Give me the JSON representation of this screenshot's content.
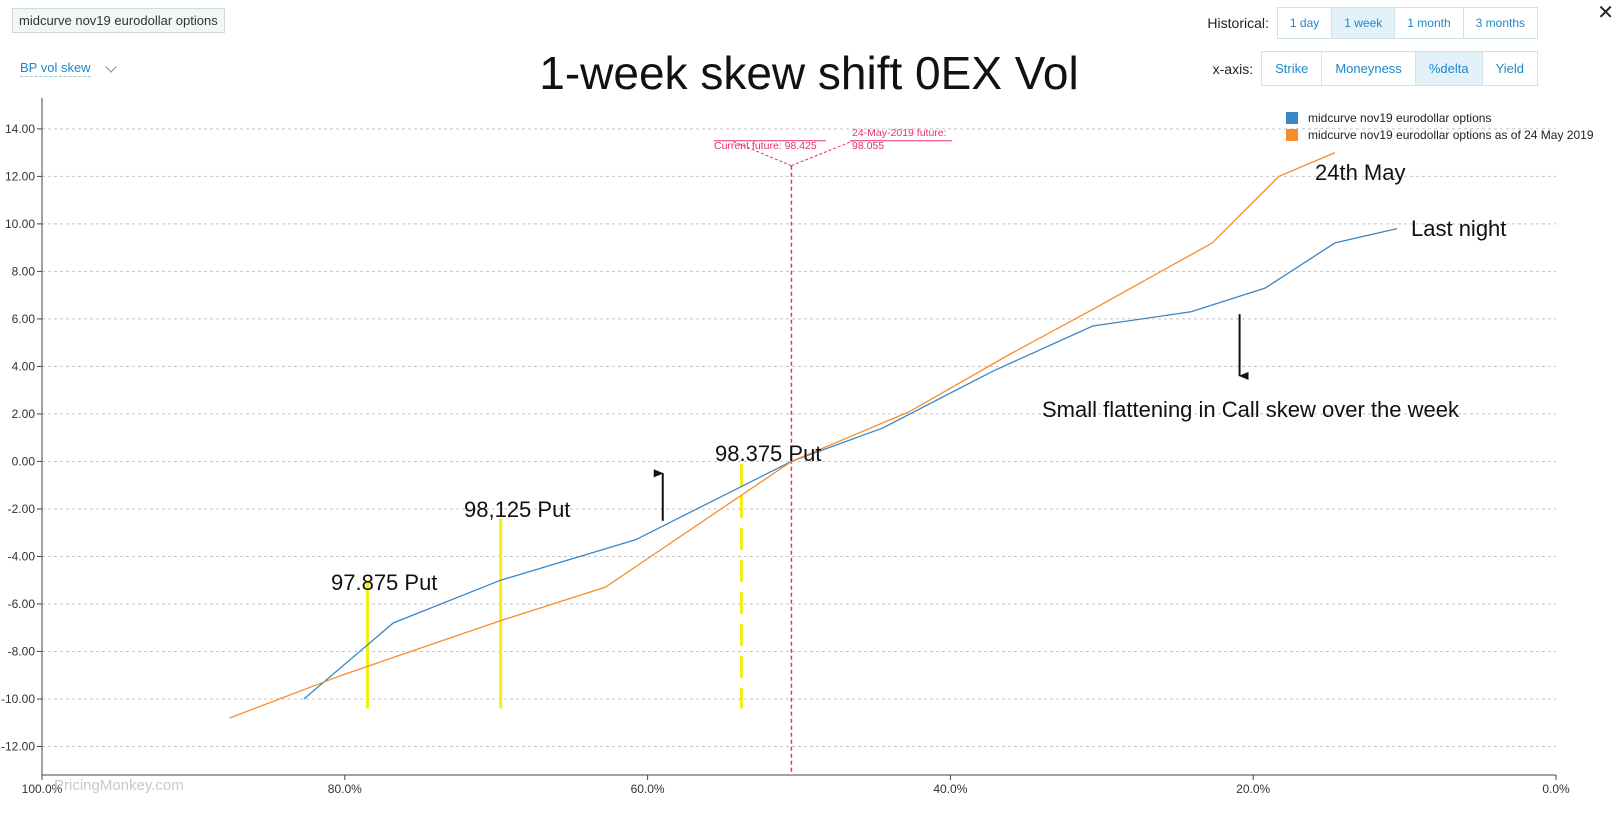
{
  "product_tag": "midcurve nov19 eurodollar options",
  "view_select": {
    "value": "BP vol skew"
  },
  "title": "1-week skew shift 0EX Vol",
  "historical": {
    "label": "Historical:",
    "options": [
      "1 day",
      "1 week",
      "1 month",
      "3 months"
    ],
    "active": "1 week"
  },
  "xaxis_mode": {
    "label": "x-axis:",
    "options": [
      "Strike",
      "Moneyness",
      "%delta",
      "Yield"
    ],
    "active": "%delta"
  },
  "close_symbol": "✕",
  "watermark": "PricingMonkey.com",
  "colors": {
    "series_current": "#3a87c6",
    "series_hist": "#f78c2a",
    "marker_line": "#e8306e",
    "put_markers": "#f2ee1a"
  },
  "chart_data": {
    "type": "line",
    "xlabel": "",
    "ylabel": "",
    "xlim": [
      100,
      0
    ],
    "ylim": [
      -13.2,
      15.3
    ],
    "x_ticks": [
      "100.0%",
      "80.0%",
      "60.0%",
      "40.0%",
      "20.0%",
      "0.0%"
    ],
    "y_ticks": [
      "14.00",
      "12.00",
      "10.00",
      "8.00",
      "6.00",
      "4.00",
      "2.00",
      "0.00",
      "-2.00",
      "-4.00",
      "-6.00",
      "-8.00",
      "-10.00",
      "-12.00"
    ],
    "grid": true,
    "legend": "top-right",
    "series": [
      {
        "name": "midcurve nov19 eurodollar options",
        "color": "#3a87c6",
        "points": [
          [
            82.7,
            -10.0
          ],
          [
            76.8,
            -6.8
          ],
          [
            69.7,
            -5.0
          ],
          [
            60.8,
            -3.3
          ],
          [
            50.5,
            0.0
          ],
          [
            44.5,
            1.4
          ],
          [
            37.2,
            3.8
          ],
          [
            30.6,
            5.7
          ],
          [
            24.1,
            6.3
          ],
          [
            19.2,
            7.3
          ],
          [
            14.6,
            9.2
          ],
          [
            10.5,
            9.8
          ]
        ]
      },
      {
        "name": "midcurve nov19 eurodollar options as of 24 May 2019",
        "color": "#f78c2a",
        "points": [
          [
            87.6,
            -10.8
          ],
          [
            80.2,
            -9.0
          ],
          [
            69.7,
            -6.7
          ],
          [
            62.8,
            -5.3
          ],
          [
            50.5,
            0.0
          ],
          [
            42.7,
            2.1
          ],
          [
            36.1,
            4.5
          ],
          [
            30.6,
            6.4
          ],
          [
            22.7,
            9.2
          ],
          [
            18.3,
            12.0
          ],
          [
            14.6,
            13.0
          ]
        ]
      }
    ],
    "annotations": [
      {
        "text": "Current future: 98.425"
      },
      {
        "text": "24-May-2019 future: 98.055",
        "text_lines": [
          "24-May-2019 future:",
          "98.055"
        ]
      },
      {
        "text": "24th May"
      },
      {
        "text": "Last night"
      },
      {
        "text": "Small flattening in Call skew over the week"
      },
      {
        "text": "97.875 Put"
      },
      {
        "text": "98,125 Put"
      },
      {
        "text": "98.375 Put"
      }
    ],
    "future_marker_x": 50.5,
    "put_markers": [
      {
        "x": 78.5,
        "y_top": -5.0,
        "y_bottom": -10.4,
        "style": "solid"
      },
      {
        "x": 69.7,
        "y_top": -2.4,
        "y_bottom": -10.4,
        "style": "solid"
      },
      {
        "x": 53.8,
        "y_top": -0.1,
        "y_bottom": -10.4,
        "style": "dashed"
      }
    ],
    "arrows": [
      {
        "x": 59.0,
        "y_from": -2.5,
        "y_to": -0.5,
        "direction": "up"
      },
      {
        "x": 20.9,
        "y_from": 6.2,
        "y_to": 3.6,
        "direction": "down"
      }
    ]
  }
}
